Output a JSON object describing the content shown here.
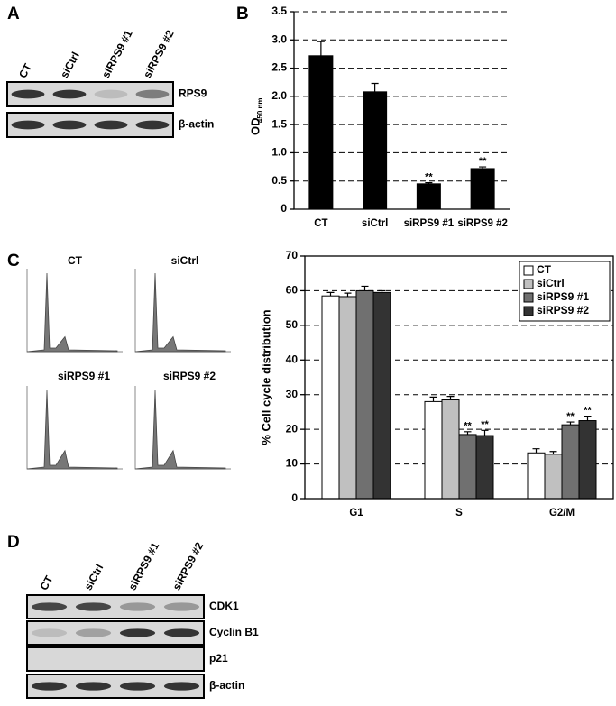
{
  "panel_letters": [
    "A",
    "B",
    "C",
    "D"
  ],
  "blot_a": {
    "lanes": [
      "CT",
      "siCtrl",
      "siRPS9 #1",
      "siRPS9 #2"
    ],
    "rows": [
      "RPS9",
      "β-actin"
    ]
  },
  "flow_c": {
    "labels": [
      "CT",
      "siCtrl",
      "siRPS9 #1",
      "siRPS9 #2"
    ]
  },
  "blot_d": {
    "lanes": [
      "CT",
      "siCtrl",
      "siRPS9 #1",
      "siRPS9 #2"
    ],
    "rows": [
      "CDK1",
      "Cyclin B1",
      "p21",
      "β-actin"
    ]
  },
  "chart_data": [
    {
      "type": "bar",
      "y_label": "OD",
      "y_label_subscript": "450 nm",
      "categories": [
        "CT",
        "siCtrl",
        "siRPS9 #1",
        "siRPS9 #2"
      ],
      "values": [
        2.72,
        2.08,
        0.45,
        0.72
      ],
      "errors": [
        0.25,
        0.15,
        0.02,
        0.03
      ],
      "annotations": [
        null,
        null,
        "**",
        "**"
      ],
      "color": "#000000",
      "ylim": [
        0,
        3.5
      ],
      "yticks": [
        0,
        0.5,
        {
          "value": 1,
          "label": "1.0"
        },
        1.5,
        {
          "value": 2,
          "label": "2.0"
        },
        2.5,
        {
          "value": 3,
          "label": "3.0"
        },
        3.5
      ],
      "grid": true
    },
    {
      "type": "grouped_bar",
      "y_label": "% Cell cycle distribution",
      "categories": [
        "G1",
        "S",
        "G2/M"
      ],
      "series": [
        {
          "name": "CT",
          "color": "#ffffff",
          "values": [
            58.5,
            28,
            13.2
          ],
          "errors": [
            1,
            1.3,
            1.2
          ],
          "annotations": [
            null,
            null,
            null
          ]
        },
        {
          "name": "siCtrl",
          "color": "#c0c0c0",
          "values": [
            58.3,
            28.5,
            12.8
          ],
          "errors": [
            1,
            1,
            0.8
          ],
          "annotations": [
            null,
            null,
            null
          ]
        },
        {
          "name": "siRPS9 #1",
          "color": "#707070",
          "values": [
            60,
            18.5,
            21.3
          ],
          "errors": [
            1.3,
            0.8,
            0.8
          ],
          "annotations": [
            null,
            "**",
            "**"
          ]
        },
        {
          "name": "siRPS9 #2",
          "color": "#333333",
          "values": [
            59.5,
            18.2,
            22.5
          ],
          "errors": [
            0.5,
            1.5,
            1.3
          ],
          "annotations": [
            null,
            "**",
            "**"
          ]
        }
      ],
      "ylim": [
        0,
        70
      ],
      "yticks": [
        0,
        10,
        20,
        30,
        40,
        50,
        60,
        70
      ],
      "grid": true,
      "legend": "top-right"
    }
  ]
}
